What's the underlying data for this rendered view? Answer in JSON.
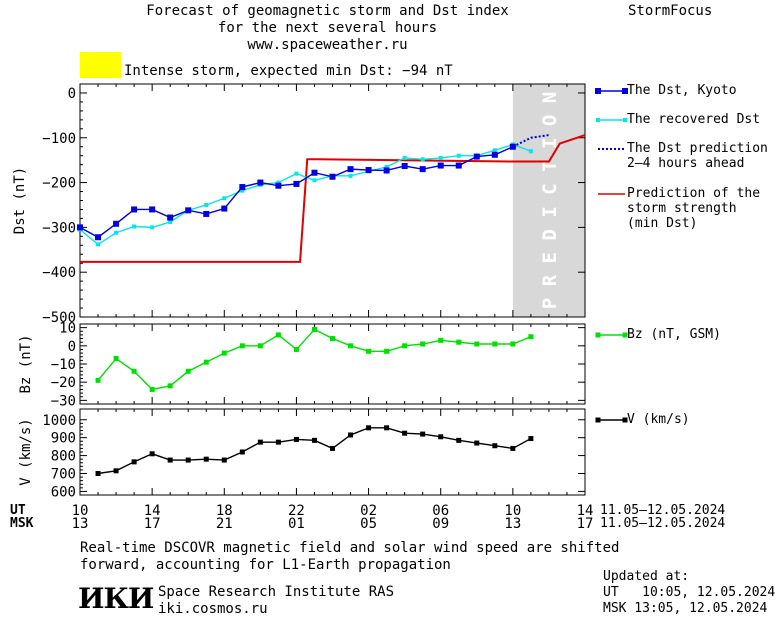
{
  "header": {
    "title_line1": "Forecast of geomagnetic storm and Dst index",
    "title_line2": "for the next several hours",
    "title_line3": "www.spaceweather.ru",
    "brand": "StormFocus"
  },
  "alert": {
    "text": "Intense storm, expected min Dst: −94 nT",
    "color": "#ffff00"
  },
  "prediction_band_label": "P R E D I C T I O N",
  "legend": {
    "dst_kyoto": "The Dst, Kyoto",
    "dst_recovered": "The recovered Dst",
    "dst_pred_line1": "The Dst prediction",
    "dst_pred_line2": "2–4 hours ahead",
    "strength_line1": "Prediction of the",
    "strength_line2": "storm strength",
    "strength_line3": "(min Dst)",
    "bz": "Bz (nT, GSM)",
    "v": "V (km/s)"
  },
  "axes": {
    "ut_label": "UT",
    "msk_label": "MSK",
    "ut_ticks": [
      "10",
      "14",
      "18",
      "22",
      "02",
      "06",
      "10",
      "14"
    ],
    "msk_ticks": [
      "13",
      "17",
      "21",
      "01",
      "05",
      "09",
      "13",
      "17"
    ],
    "ut_range": "11.05–12.05.2024",
    "msk_range": "11.05–12.05.2024"
  },
  "footer": {
    "note_line1": "Real-time DSCOVR magnetic field and solar wind speed are shifted",
    "note_line2": "forward, accounting for L1-Earth propagation",
    "logo": "ИКИ",
    "org_name": "Space Research Institute RAS",
    "org_site": "iki.cosmos.ru",
    "updated_label": "Updated at:",
    "updated_ut": "UT   10:05, 12.05.2024",
    "updated_msk": "MSK 13:05, 12.05.2024"
  },
  "chart_data": [
    {
      "type": "line",
      "panel": "dst",
      "ylabel": "Dst (nT)",
      "ylim": [
        -500,
        20
      ],
      "yticks": [
        0,
        -100,
        -200,
        -300,
        -400,
        -500
      ],
      "xlim": [
        10,
        38
      ],
      "x_note": "hours from 00 UT 11.05.2024",
      "prediction_start": 34,
      "series": [
        {
          "name": "The Dst, Kyoto",
          "color": "#0000e0",
          "x": [
            10,
            11,
            12,
            13,
            14,
            15,
            16,
            17,
            18,
            19,
            20,
            21,
            22,
            23,
            24,
            25,
            26,
            27,
            28,
            29,
            30,
            31,
            32,
            33,
            34
          ],
          "y": [
            -300,
            -322,
            -292,
            -260,
            -260,
            -278,
            -262,
            -270,
            -258,
            -210,
            -200,
            -207,
            -203,
            -178,
            -187,
            -170,
            -172,
            -173,
            -163,
            -170,
            -162,
            -162,
            -142,
            -138,
            -120
          ]
        },
        {
          "name": "The recovered Dst",
          "color": "#00e8e8",
          "x": [
            10,
            11,
            12,
            13,
            14,
            15,
            16,
            17,
            18,
            19,
            20,
            21,
            22,
            23,
            24,
            25,
            26,
            27,
            28,
            29,
            30,
            31,
            32,
            33,
            34,
            35
          ],
          "y": [
            -305,
            -338,
            -312,
            -298,
            -300,
            -288,
            -262,
            -250,
            -235,
            -218,
            -205,
            -200,
            -180,
            -195,
            -185,
            -185,
            -175,
            -165,
            -145,
            -148,
            -145,
            -140,
            -140,
            -128,
            -115,
            -130
          ]
        },
        {
          "name": "The Dst prediction",
          "color": "#0000e0",
          "x": [
            34,
            35,
            36
          ],
          "y": [
            -120,
            -100,
            -94
          ]
        },
        {
          "name": "Prediction of the storm strength (min Dst)",
          "color": "#e00000",
          "x": [
            10,
            21.8,
            22.2,
            22.6,
            23.2,
            34,
            34.2,
            34.6,
            36,
            36.6,
            38
          ],
          "y": [
            -377,
            -377,
            -377,
            -148,
            -148,
            -153,
            -153,
            -153,
            -153,
            -113,
            -94
          ]
        }
      ]
    },
    {
      "type": "line",
      "panel": "bz",
      "ylabel": "Bz (nT)",
      "ylim": [
        -32,
        12
      ],
      "yticks": [
        10,
        0,
        -10,
        -20,
        -30
      ],
      "series": [
        {
          "name": "Bz (nT, GSM)",
          "color": "#00e000",
          "x": [
            11,
            12,
            13,
            14,
            15,
            16,
            17,
            18,
            19,
            20,
            21,
            22,
            23,
            24,
            25,
            26,
            27,
            28,
            29,
            30,
            31,
            32,
            33,
            34,
            35
          ],
          "y": [
            -19,
            -7,
            -14,
            -24,
            -22,
            -14,
            -9,
            -4,
            0,
            0,
            6,
            -2,
            9,
            4,
            0,
            -3,
            -3,
            0,
            1,
            3,
            2,
            1,
            1,
            1,
            5
          ]
        }
      ]
    },
    {
      "type": "line",
      "panel": "v",
      "ylabel": "V (km/s)",
      "ylim": [
        580,
        1060
      ],
      "yticks": [
        1000,
        900,
        800,
        700,
        600
      ],
      "series": [
        {
          "name": "V (km/s)",
          "color": "#000000",
          "x": [
            11,
            12,
            13,
            14,
            15,
            16,
            17,
            18,
            19,
            20,
            21,
            22,
            23,
            24,
            25,
            26,
            27,
            28,
            29,
            30,
            31,
            32,
            33,
            34,
            35
          ],
          "y": [
            700,
            715,
            765,
            810,
            775,
            775,
            780,
            775,
            820,
            875,
            875,
            890,
            885,
            840,
            915,
            955,
            955,
            925,
            920,
            905,
            885,
            870,
            855,
            840,
            895
          ]
        }
      ]
    }
  ]
}
